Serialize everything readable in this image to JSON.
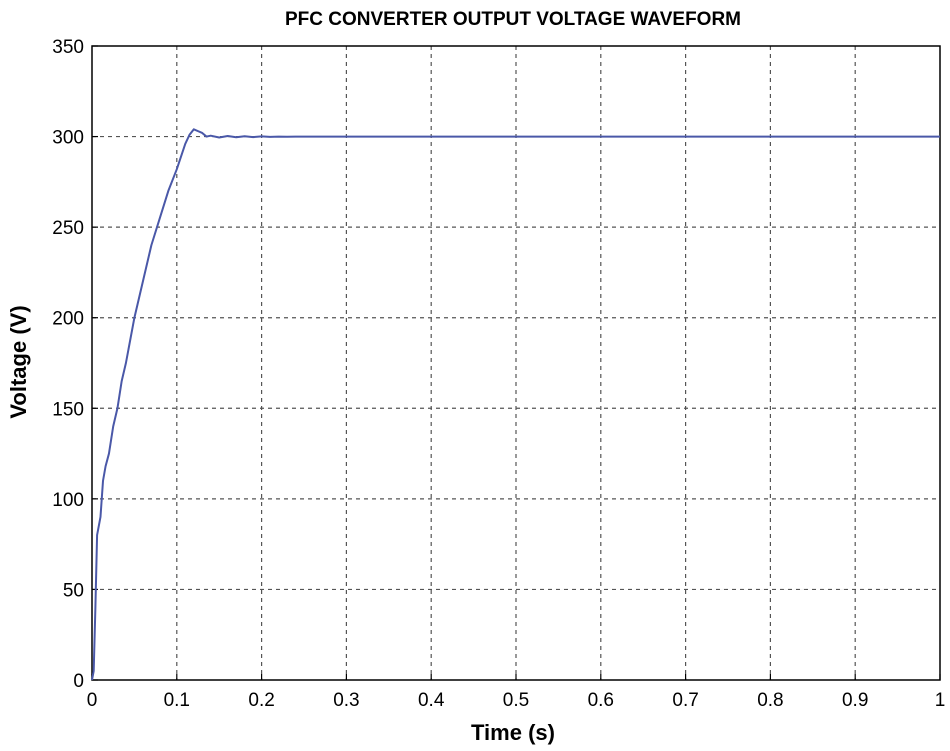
{
  "chart_data": {
    "type": "line",
    "title": "PFC CONVERTER OUTPUT VOLTAGE WAVEFORM",
    "xlabel": "Time (s)",
    "ylabel": "Voltage (V)",
    "xlim": [
      0,
      1
    ],
    "ylim": [
      0,
      350
    ],
    "xticks": [
      "0",
      "0.1",
      "0.2",
      "0.3",
      "0.4",
      "0.5",
      "0.6",
      "0.7",
      "0.8",
      "0.9",
      "1"
    ],
    "yticks": [
      "0",
      "50",
      "100",
      "150",
      "200",
      "250",
      "300",
      "350"
    ],
    "grid": true,
    "series": [
      {
        "color": "#4a58a8",
        "x": [
          0,
          0.002,
          0.004,
          0.006,
          0.008,
          0.01,
          0.013,
          0.016,
          0.02,
          0.025,
          0.03,
          0.035,
          0.04,
          0.05,
          0.06,
          0.07,
          0.08,
          0.09,
          0.1,
          0.11,
          0.115,
          0.12,
          0.125,
          0.13,
          0.135,
          0.14,
          0.15,
          0.16,
          0.17,
          0.18,
          0.19,
          0.2,
          0.21,
          0.22,
          0.23,
          0.24,
          0.25,
          0.3,
          0.4,
          0.5,
          0.6,
          0.7,
          0.8,
          0.9,
          1.0
        ],
        "values": [
          0,
          5,
          40,
          80,
          85,
          90,
          110,
          118,
          125,
          140,
          150,
          165,
          175,
          200,
          220,
          240,
          255,
          270,
          282,
          296,
          301,
          304,
          303,
          302,
          300,
          300.5,
          299.5,
          300.3,
          299.6,
          300.2,
          299.7,
          300.1,
          299.8,
          300,
          299.9,
          300,
          300,
          300,
          300,
          300,
          300,
          300,
          300,
          300,
          300
        ]
      }
    ]
  }
}
